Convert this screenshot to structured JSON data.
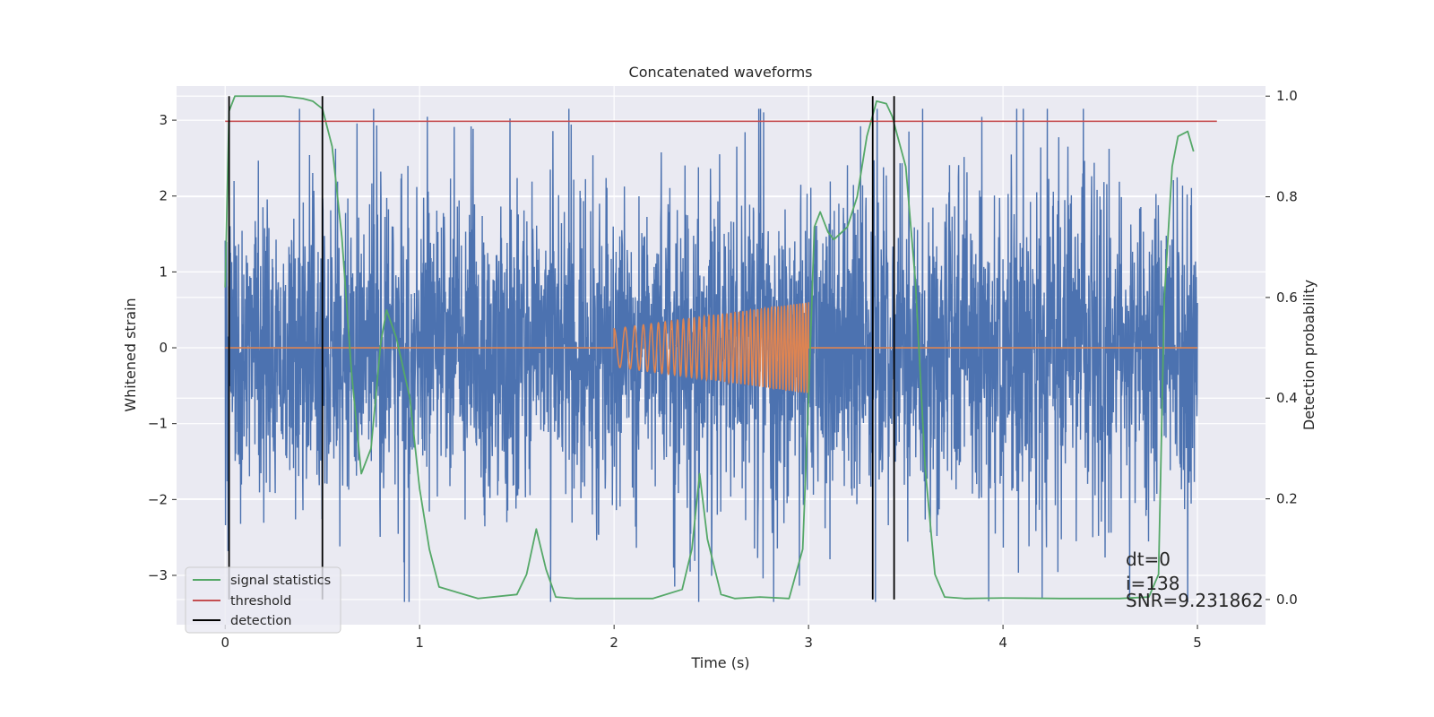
{
  "chart_data": {
    "type": "line",
    "title": "Concatenated waveforms",
    "xlabel": "Time (s)",
    "ylabel_left": "Whitened strain",
    "ylabel_right": "Detection probability",
    "xlim": [
      -0.25,
      5.35
    ],
    "ylim_left": [
      -3.65,
      3.45
    ],
    "ylim_right": [
      -0.05,
      1.02
    ],
    "x_ticks": [
      "0",
      "1",
      "2",
      "3",
      "4",
      "5"
    ],
    "y_ticks_left": [
      "3",
      "2",
      "1",
      "0",
      "−1",
      "−2",
      "−3"
    ],
    "y_ticks_right": [
      "1.0",
      "0.8",
      "0.6",
      "0.4",
      "0.2",
      "0.0"
    ],
    "grid": true,
    "legend_location": "lower-left",
    "series": [
      {
        "name": "",
        "axis": "left",
        "color": "#4c72b0",
        "kind": "noise",
        "x_range": [
          0,
          5
        ],
        "typical_amplitude": 1.0,
        "y_range": [
          -3.35,
          3.15
        ]
      },
      {
        "name": "",
        "axis": "left",
        "color": "#dd8452",
        "kind": "chirp",
        "x_range": [
          0,
          5
        ],
        "chirp_start": 2.0,
        "chirp_end": 3.0,
        "amplitude_start": 0.25,
        "amplitude_end": 0.6
      },
      {
        "name": "signal statistics",
        "axis": "right",
        "color": "#55a868",
        "x": [
          0,
          0.02,
          0.05,
          0.1,
          0.2,
          0.3,
          0.4,
          0.45,
          0.5,
          0.55,
          0.6,
          0.65,
          0.7,
          0.75,
          0.8,
          0.83,
          0.88,
          0.95,
          1.0,
          1.05,
          1.1,
          1.3,
          1.5,
          1.55,
          1.6,
          1.65,
          1.7,
          1.8,
          2.0,
          2.2,
          2.35,
          2.4,
          2.44,
          2.48,
          2.55,
          2.62,
          2.75,
          2.9,
          2.97,
          3.0,
          3.03,
          3.06,
          3.1,
          3.13,
          3.2,
          3.25,
          3.3,
          3.35,
          3.4,
          3.43,
          3.5,
          3.55,
          3.6,
          3.65,
          3.7,
          3.8,
          4.0,
          4.3,
          4.6,
          4.75,
          4.8,
          4.83,
          4.87,
          4.9,
          4.95,
          4.98
        ],
        "y": [
          0.62,
          0.97,
          1.0,
          1.0,
          1.0,
          1.0,
          0.995,
          0.99,
          0.975,
          0.9,
          0.72,
          0.45,
          0.25,
          0.3,
          0.51,
          0.575,
          0.52,
          0.4,
          0.22,
          0.1,
          0.025,
          0.002,
          0.01,
          0.05,
          0.14,
          0.06,
          0.005,
          0.002,
          0.002,
          0.002,
          0.02,
          0.1,
          0.25,
          0.12,
          0.01,
          0.002,
          0.005,
          0.002,
          0.1,
          0.4,
          0.74,
          0.77,
          0.73,
          0.715,
          0.74,
          0.8,
          0.92,
          0.99,
          0.985,
          0.96,
          0.86,
          0.63,
          0.26,
          0.05,
          0.005,
          0.002,
          0.003,
          0.002,
          0.002,
          0.005,
          0.05,
          0.6,
          0.86,
          0.92,
          0.93,
          0.89
        ]
      },
      {
        "name": "threshold",
        "axis": "right",
        "color": "#c44e52",
        "x": [
          0,
          5.1
        ],
        "y": [
          0.95,
          0.95
        ]
      },
      {
        "name": "detection",
        "axis": "right",
        "color": "#000000",
        "vlines": [
          0.02,
          0.5,
          3.33,
          3.44
        ],
        "y_range": [
          0,
          1
        ]
      }
    ],
    "annotations": [
      "dt=0",
      "i=138",
      "SNR=9.231862"
    ]
  },
  "colors": {
    "axes_bg": "#eaeaf2",
    "grid": "#ffffff",
    "text": "#262626"
  }
}
